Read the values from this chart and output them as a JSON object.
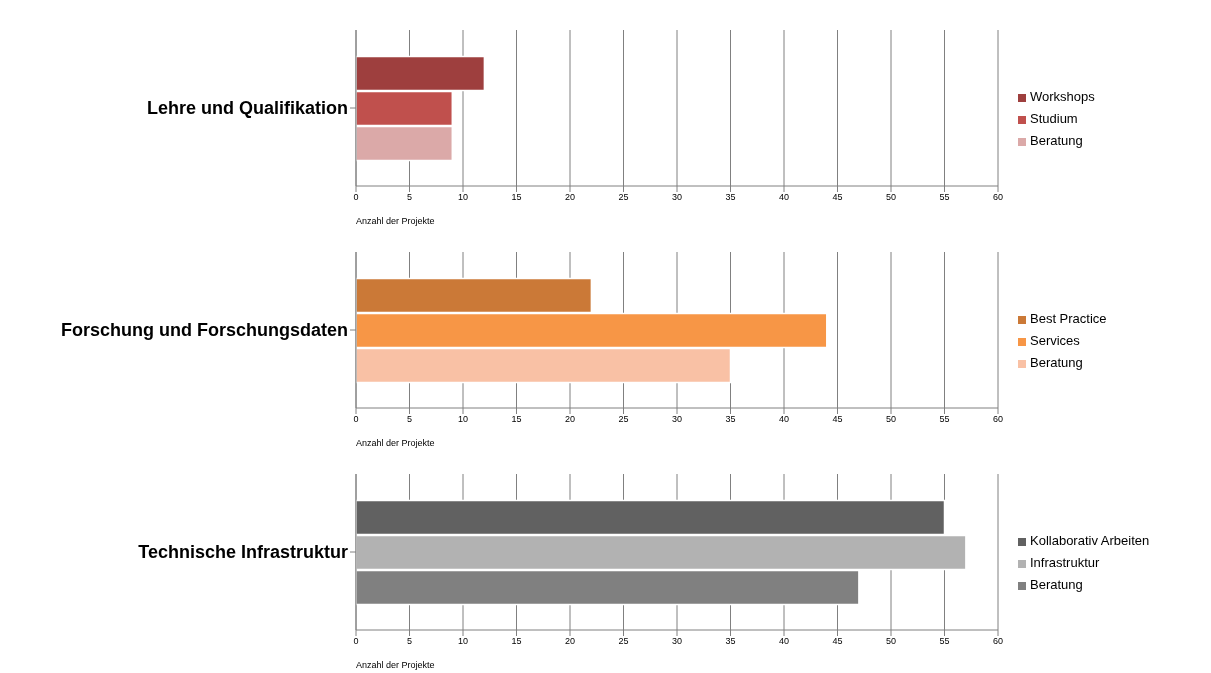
{
  "chart_data": [
    {
      "type": "bar",
      "orientation": "horizontal",
      "categories": [
        "Lehre und Qualifikation"
      ],
      "xlabel": "Anzahl der Projekte",
      "xlim": [
        0,
        60
      ],
      "xticks": [
        0,
        5,
        10,
        15,
        20,
        25,
        30,
        35,
        40,
        45,
        50,
        55,
        60
      ],
      "grid": "x",
      "legend": "right",
      "series": [
        {
          "name": "Workshops",
          "color": "#9e3f3e",
          "values": [
            12
          ]
        },
        {
          "name": "Studium",
          "color": "#c0504d",
          "values": [
            9
          ]
        },
        {
          "name": "Beratung",
          "color": "#dba9a8",
          "values": [
            9
          ]
        }
      ]
    },
    {
      "type": "bar",
      "orientation": "horizontal",
      "categories": [
        "Forschung und Forschungsdaten"
      ],
      "xlabel": "Anzahl der Projekte",
      "xlim": [
        0,
        60
      ],
      "xticks": [
        0,
        5,
        10,
        15,
        20,
        25,
        30,
        35,
        40,
        45,
        50,
        55,
        60
      ],
      "grid": "x",
      "legend": "right",
      "series": [
        {
          "name": "Best Practice",
          "color": "#cb7937",
          "values": [
            22
          ]
        },
        {
          "name": "Services",
          "color": "#f79646",
          "values": [
            44
          ]
        },
        {
          "name": "Beratung",
          "color": "#f9c1a5",
          "values": [
            35
          ]
        }
      ]
    },
    {
      "type": "bar",
      "orientation": "horizontal",
      "categories": [
        "Technische Infrastruktur"
      ],
      "xlabel": "Anzahl der Projekte",
      "xlim": [
        0,
        60
      ],
      "xticks": [
        0,
        5,
        10,
        15,
        20,
        25,
        30,
        35,
        40,
        45,
        50,
        55,
        60
      ],
      "grid": "x",
      "legend": "right",
      "series": [
        {
          "name": "Kollaborativ Arbeiten",
          "color": "#616161",
          "values": [
            55
          ]
        },
        {
          "name": "Infrastruktur",
          "color": "#b2b2b2",
          "values": [
            57
          ]
        },
        {
          "name": "Beratung",
          "color": "#808080",
          "values": [
            47
          ]
        }
      ]
    }
  ]
}
